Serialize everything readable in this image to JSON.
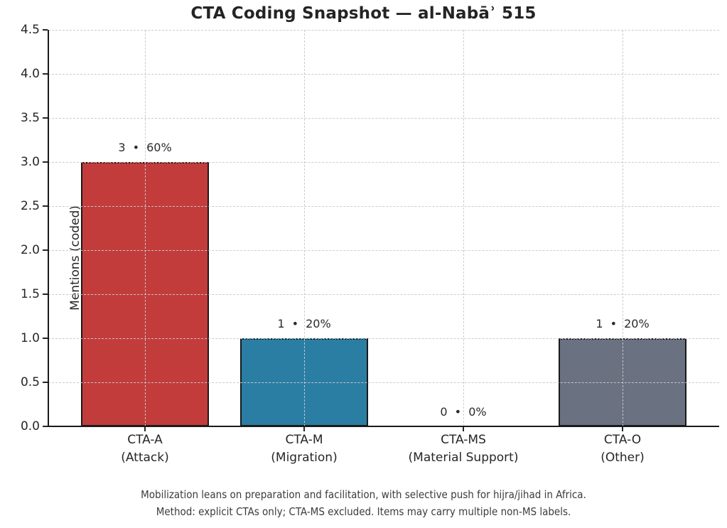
{
  "title": "CTA Coding Snapshot — al-Nabāʾ 515",
  "footer": {
    "line1": "Mobilization leans on preparation and facilitation, with selective push for hijra/jihad in Africa.",
    "line2": "Method: explicit CTAs only; CTA-MS excluded. Items may carry multiple non-MS labels."
  },
  "chart_data": {
    "type": "bar",
    "title": "CTA Coding Snapshot — al-Nabāʾ 515",
    "xlabel": "",
    "ylabel": "Mentions (coded)",
    "ylim": [
      0,
      4.5
    ],
    "yticks": [
      0,
      0.5,
      1,
      1.5,
      2,
      2.5,
      3,
      3.5,
      4,
      4.5
    ],
    "grid": {
      "style": "dashed",
      "color": "#c9c9c9",
      "above_bars": true,
      "vertical_at_categories": true
    },
    "legend_position": "none",
    "categories": [
      "CTA-A (Attack)",
      "CTA-M (Migration)",
      "CTA-MS (Material Support)",
      "CTA-O (Other)"
    ],
    "values": [
      3,
      1,
      0,
      1
    ],
    "bars": [
      {
        "code": "CTA-A",
        "sub": "(Attack)",
        "value": 3,
        "pct": "60%",
        "label": "3 • 60%",
        "color": "#c23c3c"
      },
      {
        "code": "CTA-M",
        "sub": "(Migration)",
        "value": 1,
        "pct": "20%",
        "label": "1 • 20%",
        "color": "#2b7ea3"
      },
      {
        "code": "CTA-MS",
        "sub": "(Material Support)",
        "value": 0,
        "pct": "0%",
        "label": "0 • 0%",
        "color": "none"
      },
      {
        "code": "CTA-O",
        "sub": "(Other)",
        "value": 1,
        "pct": "20%",
        "label": "1 • 20%",
        "color": "#6a7180"
      }
    ],
    "bar_edge_color": "#1a1a1a",
    "bar_top_edge_style": "dotted",
    "value_label_format": "count • percent"
  },
  "style": {
    "background": "#ffffff",
    "text_color": "#262626",
    "footer_color": "#3c3c3c",
    "spine_color": "#1b1b1b"
  }
}
